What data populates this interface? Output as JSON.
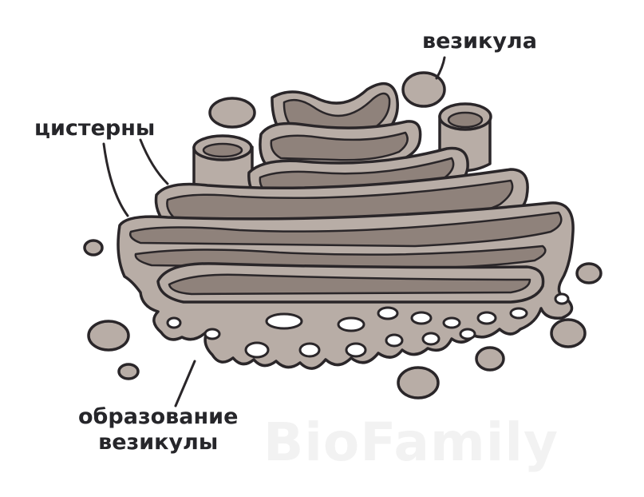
{
  "labels": {
    "vesicle": "везикула",
    "cisterns": "цистерны",
    "vesicle_formation_line1": "образование",
    "vesicle_formation_line2": "везикулы"
  },
  "watermark": "BioFamily",
  "colors": {
    "membrane_fill": "#b8ada6",
    "lumen_fill": "#8f827b",
    "outline": "#2a2629",
    "label_text": "#26262a",
    "watermark": "#f2f2f2"
  }
}
